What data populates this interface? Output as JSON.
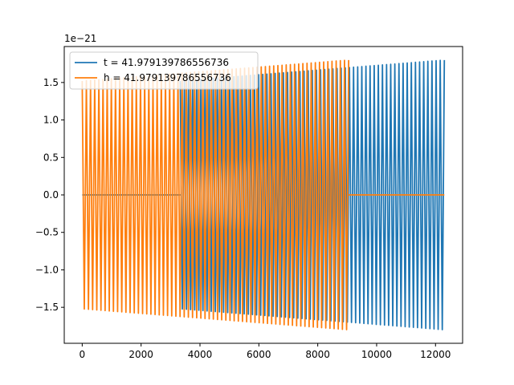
{
  "chart_data": {
    "type": "line",
    "title": "",
    "xlabel": "",
    "ylabel": "",
    "offset_label": "1e−21",
    "xlim": [
      -610,
      12920
    ],
    "ylim": [
      -1.98,
      1.98
    ],
    "xticks": [
      0,
      2000,
      4000,
      6000,
      8000,
      10000,
      12000
    ],
    "xtick_labels": [
      "0",
      "2000",
      "4000",
      "6000",
      "8000",
      "10000",
      "12000"
    ],
    "yticks": [
      -1.5,
      -1.0,
      -0.5,
      0.0,
      0.5,
      1.0,
      1.5
    ],
    "ytick_labels": [
      "−1.5",
      "−1.0",
      "−0.5",
      "0.0",
      "0.5",
      "1.0",
      "1.5"
    ],
    "grid": false,
    "legend_position": "upper-left",
    "series": [
      {
        "name": "t = 41.979139786556736",
        "color": "#1f77b4",
        "segments": [
          {
            "x_start": 0,
            "x_end": 3330,
            "type": "flat",
            "value": 0.0
          },
          {
            "x_start": 3330,
            "x_end": 12300,
            "type": "oscillation",
            "cycles": 64,
            "amp_start": 1.52,
            "amp_end": 1.8
          }
        ]
      },
      {
        "name": "h = 41.979139786556736",
        "color": "#ff7f0e",
        "segments": [
          {
            "x_start": 0,
            "x_end": 9050,
            "type": "oscillation",
            "cycles": 64,
            "amp_start": 1.52,
            "amp_end": 1.8
          },
          {
            "x_start": 9050,
            "x_end": 12300,
            "type": "flat",
            "value": 0.0
          }
        ]
      }
    ]
  }
}
